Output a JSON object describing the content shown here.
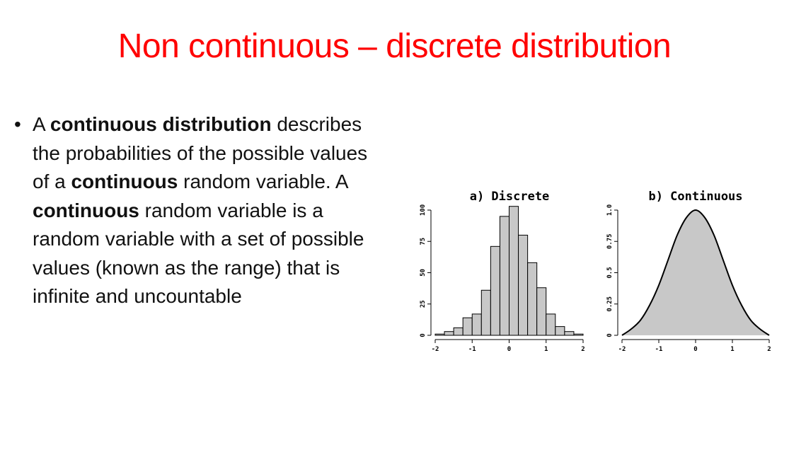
{
  "slide": {
    "title": "Non continuous – discrete distribution"
  },
  "bullets": [
    {
      "marker": "•",
      "segments": [
        {
          "text": "A ",
          "bold": false
        },
        {
          "text": "continuous distribution",
          "bold": true
        },
        {
          "text": " describes the probabilities of the possible values of a ",
          "bold": false
        },
        {
          "text": "continuous",
          "bold": true
        },
        {
          "text": " random variable. A ",
          "bold": false
        },
        {
          "text": "continuous",
          "bold": true
        },
        {
          "text": " random variable is a random variable with a set of possible values (known as the range) that is infinite and uncountable",
          "bold": false
        }
      ]
    }
  ],
  "chart_data": [
    {
      "type": "bar",
      "title": "a) Discrete",
      "xlim": [
        -2,
        2
      ],
      "ylim": [
        0,
        100
      ],
      "x_ticks": [
        "-2",
        "-1",
        "0",
        "1",
        "2"
      ],
      "y_ticks": [
        "0",
        "25",
        "50",
        "75",
        "100"
      ],
      "bin_width": 0.25,
      "bin_starts": [
        -2.0,
        -1.75,
        -1.5,
        -1.25,
        -1.0,
        -0.75,
        -0.5,
        -0.25,
        0.0,
        0.25,
        0.5,
        0.75,
        1.0,
        1.25,
        1.5,
        1.75
      ],
      "values": [
        1,
        3,
        6,
        14,
        17,
        36,
        71,
        95,
        103,
        80,
        58,
        38,
        17,
        7,
        3,
        1
      ],
      "fill_color": "#c8c8c8",
      "grid": false
    },
    {
      "type": "area",
      "title": "b) Continuous",
      "xlim": [
        -2,
        2
      ],
      "ylim": [
        0,
        1.0
      ],
      "x_ticks": [
        "-2",
        "-1",
        "0",
        "1",
        "2"
      ],
      "y_ticks": [
        "0",
        "0.25",
        "0.5",
        "0.75",
        "1.0"
      ],
      "x": [
        -2.0,
        -1.75,
        -1.5,
        -1.25,
        -1.0,
        -0.75,
        -0.5,
        -0.25,
        0.0,
        0.25,
        0.5,
        0.75,
        1.0,
        1.25,
        1.5,
        1.75,
        2.0
      ],
      "y": [
        0.0,
        0.05,
        0.12,
        0.24,
        0.4,
        0.6,
        0.8,
        0.94,
        1.0,
        0.94,
        0.8,
        0.6,
        0.4,
        0.24,
        0.12,
        0.05,
        0.0
      ],
      "fill_color": "#c8c8c8",
      "grid": false
    }
  ]
}
